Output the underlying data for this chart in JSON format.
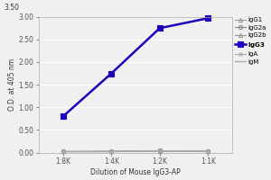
{
  "x_labels": [
    "1:8K",
    "1:4K",
    "1:2K",
    "1:1K"
  ],
  "x_values": [
    1,
    2,
    3,
    4
  ],
  "series": [
    {
      "name": "IgG1",
      "values": [
        0.02,
        0.02,
        0.03,
        0.03
      ],
      "color": "#999999",
      "marker": "^",
      "linewidth": 0.8,
      "markersize": 3,
      "bold": false,
      "markerfilled": false
    },
    {
      "name": "IgG2a",
      "values": [
        0.02,
        0.03,
        0.04,
        0.03
      ],
      "color": "#888888",
      "marker": "o",
      "linewidth": 0.8,
      "markersize": 3,
      "bold": false,
      "markerfilled": false
    },
    {
      "name": "IgG2b",
      "values": [
        0.02,
        0.02,
        0.03,
        0.03
      ],
      "color": "#999999",
      "marker": "^",
      "linewidth": 0.8,
      "markersize": 3,
      "bold": false,
      "markerfilled": false
    },
    {
      "name": "IgG3",
      "values": [
        0.8,
        1.75,
        2.75,
        2.97
      ],
      "color": "#2200BB",
      "marker": "s",
      "linewidth": 1.8,
      "markersize": 4,
      "bold": true,
      "markerfilled": true
    },
    {
      "name": "IgA",
      "values": [
        0.02,
        0.02,
        0.04,
        0.03
      ],
      "color": "#aaaaaa",
      "marker": "x",
      "linewidth": 0.8,
      "markersize": 3,
      "bold": false,
      "markerfilled": false
    },
    {
      "name": "IgM",
      "values": [
        0.02,
        0.02,
        0.03,
        0.03
      ],
      "color": "#aaaaaa",
      "marker": null,
      "linewidth": 1.0,
      "markersize": 0,
      "bold": false,
      "markerfilled": false
    }
  ],
  "xlabel": "Dilution of Mouse IgG3-AP",
  "ylabel": "O.D. at 405 nm",
  "ylim": [
    0.0,
    3.0
  ],
  "yticks": [
    0.0,
    0.5,
    1.0,
    1.5,
    2.0,
    2.5,
    3.0
  ],
  "ytop_label": "3.50",
  "background_color": "#f0f0f0",
  "plot_bg": "#f0f0f0",
  "grid_color": "#ffffff"
}
